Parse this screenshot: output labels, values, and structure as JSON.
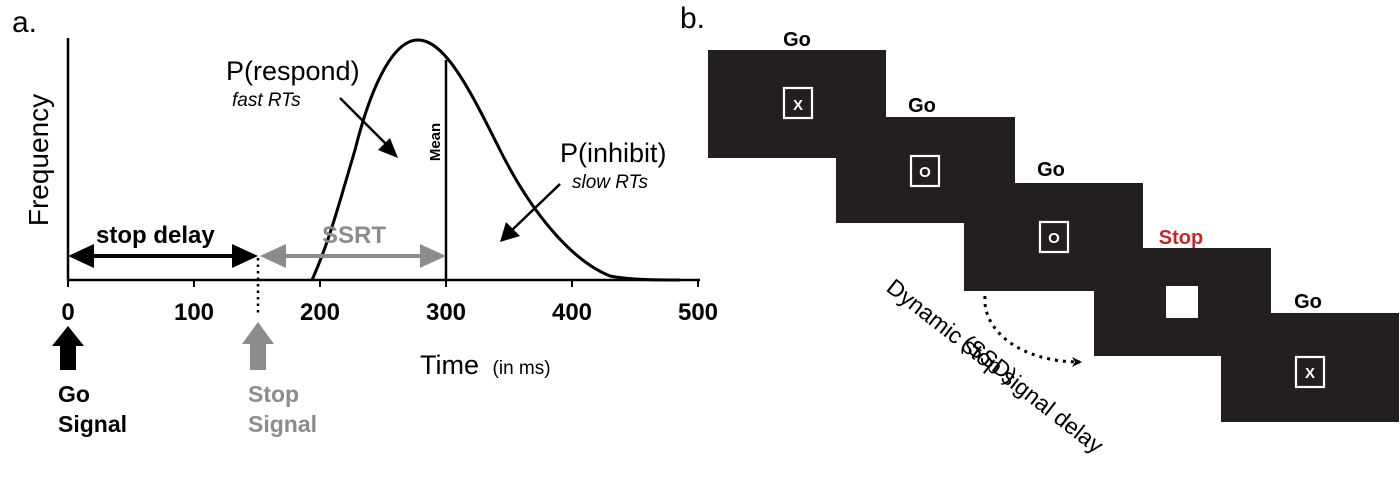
{
  "panel_a": {
    "label": "a.",
    "y_axis_label": "Frequency",
    "x_axis_label": "Time",
    "x_axis_unit": "(in ms)",
    "ticks": [
      "0",
      "100",
      "200",
      "300",
      "400",
      "500"
    ],
    "curve_label_respond": "P(respond)",
    "curve_sub_respond": "fast RTs",
    "curve_label_inhibit": "P(inhibit)",
    "curve_sub_inhibit": "slow RTs",
    "mean_label": "Mean",
    "stop_delay_label": "stop delay",
    "ssrt_label": "SSRT",
    "go_signal_line1": "Go",
    "go_signal_line2": "Signal",
    "stop_signal_line1": "Stop",
    "stop_signal_line2": "Signal",
    "colors": {
      "black": "#000000",
      "gray": "#8c8c8c"
    }
  },
  "panel_b": {
    "label": "b.",
    "frames": [
      {
        "title": "Go",
        "symbol": "X"
      },
      {
        "title": "Go",
        "symbol": "O"
      },
      {
        "title": "Go",
        "symbol": "O"
      },
      {
        "title": "Stop",
        "symbol": ""
      },
      {
        "title": "Go",
        "symbol": "X"
      }
    ],
    "ssd_line1": "Dynamic stop signal delay",
    "ssd_line2": "(SSD)",
    "colors": {
      "frame": "#231f20",
      "stop": "#c0292b"
    }
  }
}
